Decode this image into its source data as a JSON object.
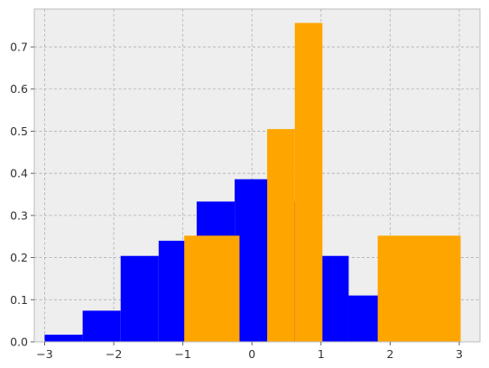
{
  "chart_data": {
    "type": "bar",
    "title": "",
    "xlabel": "",
    "ylabel": "",
    "xlim": [
      -3.15,
      3.3
    ],
    "ylim": [
      0,
      0.79
    ],
    "grid": true,
    "background": "#eeeeee",
    "xticks": [
      -3,
      -2,
      -1,
      0,
      1,
      2,
      3
    ],
    "yticks": [
      0.0,
      0.1,
      0.2,
      0.3,
      0.4,
      0.5,
      0.6,
      0.7
    ],
    "series": [
      {
        "color": "#0000ff",
        "bins": [
          {
            "x0": -3.0,
            "x1": -2.45,
            "value": 0.017
          },
          {
            "x0": -2.45,
            "x1": -1.9,
            "value": 0.074
          },
          {
            "x0": -1.9,
            "x1": -1.35,
            "value": 0.204
          },
          {
            "x0": -1.35,
            "x1": -0.8,
            "value": 0.24
          },
          {
            "x0": -0.8,
            "x1": -0.25,
            "value": 0.333
          },
          {
            "x0": -0.25,
            "x1": 0.3,
            "value": 0.386
          },
          {
            "x0": 0.3,
            "x1": 0.85,
            "value": 0.333
          },
          {
            "x0": 0.85,
            "x1": 1.4,
            "value": 0.204
          },
          {
            "x0": 1.4,
            "x1": 1.95,
            "value": 0.11
          }
        ]
      },
      {
        "color": "#ffa500",
        "bins": [
          {
            "x0": -0.98,
            "x1": -0.18,
            "value": 0.252
          },
          {
            "x0": 0.22,
            "x1": 0.62,
            "value": 0.505
          },
          {
            "x0": 0.62,
            "x1": 1.02,
            "value": 0.757
          },
          {
            "x0": 1.82,
            "x1": 3.02,
            "value": 0.252
          }
        ]
      }
    ]
  }
}
